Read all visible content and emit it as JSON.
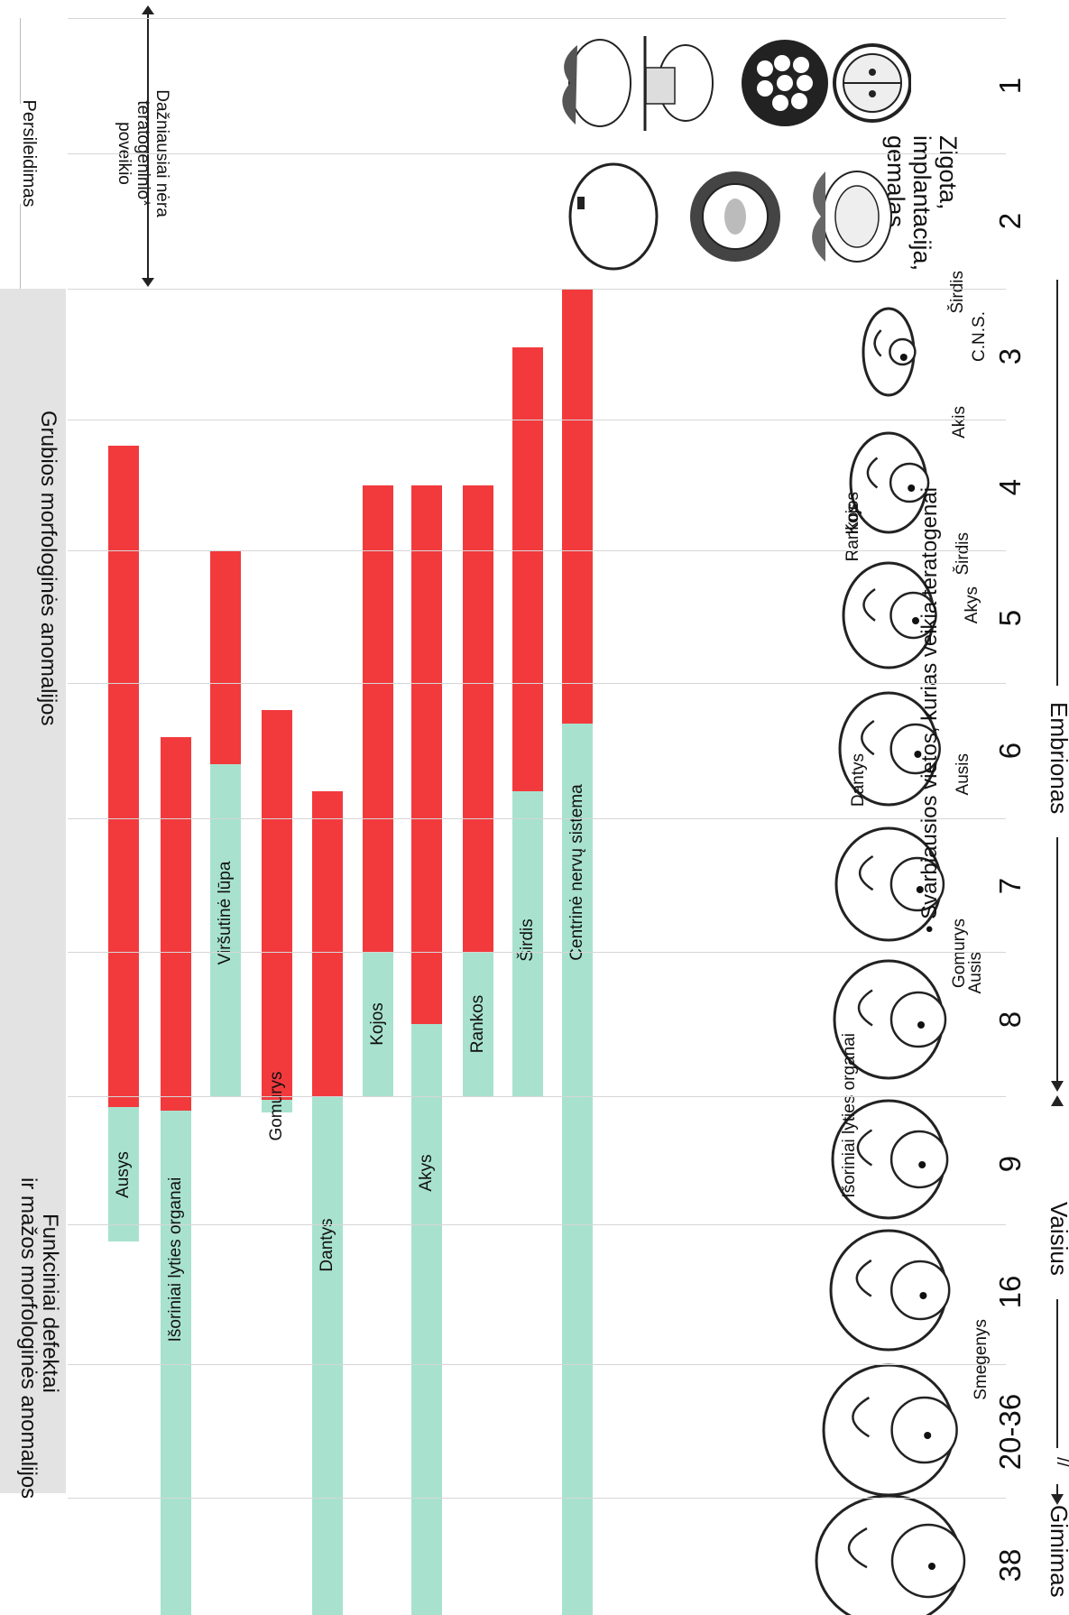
{
  "header": {
    "embryo_label": "Embrionas",
    "fetus_label": "Vaisius",
    "birth_label": "Gimimas",
    "break_mark": "//",
    "sites_note": "• Svarbiausios vietos, kurias veikia teratogenai"
  },
  "weeks": [
    "1",
    "2",
    "3",
    "4",
    "5",
    "6",
    "7",
    "8",
    "9",
    "16",
    "20-36",
    "38"
  ],
  "early_period": {
    "title_lines": [
      "Zigota,",
      "implantacija,",
      "gemalas"
    ],
    "not_teratogenic_lines": [
      "Dažniausiai nėra",
      "teratogeninio*",
      "poveikio"
    ],
    "miscarriage": "Persileidimas"
  },
  "organ_labels": [
    "C.N.S.",
    "Širdis",
    "Akis",
    "Širdis",
    "Kojos",
    "Rankos",
    "Akys",
    "Ausis",
    "Dantys",
    "Gomurys",
    "Ausis",
    "Išoriniai lyties organai",
    "Smegenys"
  ],
  "chart_data": {
    "type": "gantt",
    "axis": "weeks",
    "legend": {
      "severe": "Grubios morfologinės anomalijos",
      "minor_lines": [
        "Funkciniai defektai",
        "ir mažos morfologinės anomalijos"
      ]
    },
    "colors": {
      "severe": "#f23a3d",
      "minor": "#a8e2cf"
    },
    "bars": [
      {
        "label": "Centrinė nervų sistema",
        "severe_start": 3.0,
        "minor_start": 6.3,
        "end": 38.0
      },
      {
        "label": "Širdis",
        "severe_start": 3.45,
        "minor_start": 6.8,
        "end": 9.0
      },
      {
        "label": "Rankos",
        "severe_start": 4.5,
        "minor_start": 8.0,
        "end": 9.0
      },
      {
        "label": "Akys",
        "severe_start": 4.5,
        "minor_start": 8.5,
        "end": 38.0
      },
      {
        "label": "Kojos",
        "severe_start": 4.5,
        "minor_start": 8.0,
        "end": 9.0
      },
      {
        "label": "Dantys",
        "severe_start": 6.8,
        "minor_start": 9.0,
        "end": 38.0
      },
      {
        "label": "Gomurys",
        "severe_start": 6.2,
        "minor_start": 9.2,
        "end": 9.9
      },
      {
        "label": "Viršutinė lūpa",
        "severe_start": 5.0,
        "minor_start": 6.6,
        "end": 9.0
      },
      {
        "label": "Išoriniai lyties organai",
        "severe_start": 6.4,
        "minor_start": 9.8,
        "end": 38.0
      },
      {
        "label": "Ausys",
        "severe_start": 4.2,
        "minor_start": 9.6,
        "end": 16.5
      }
    ]
  }
}
